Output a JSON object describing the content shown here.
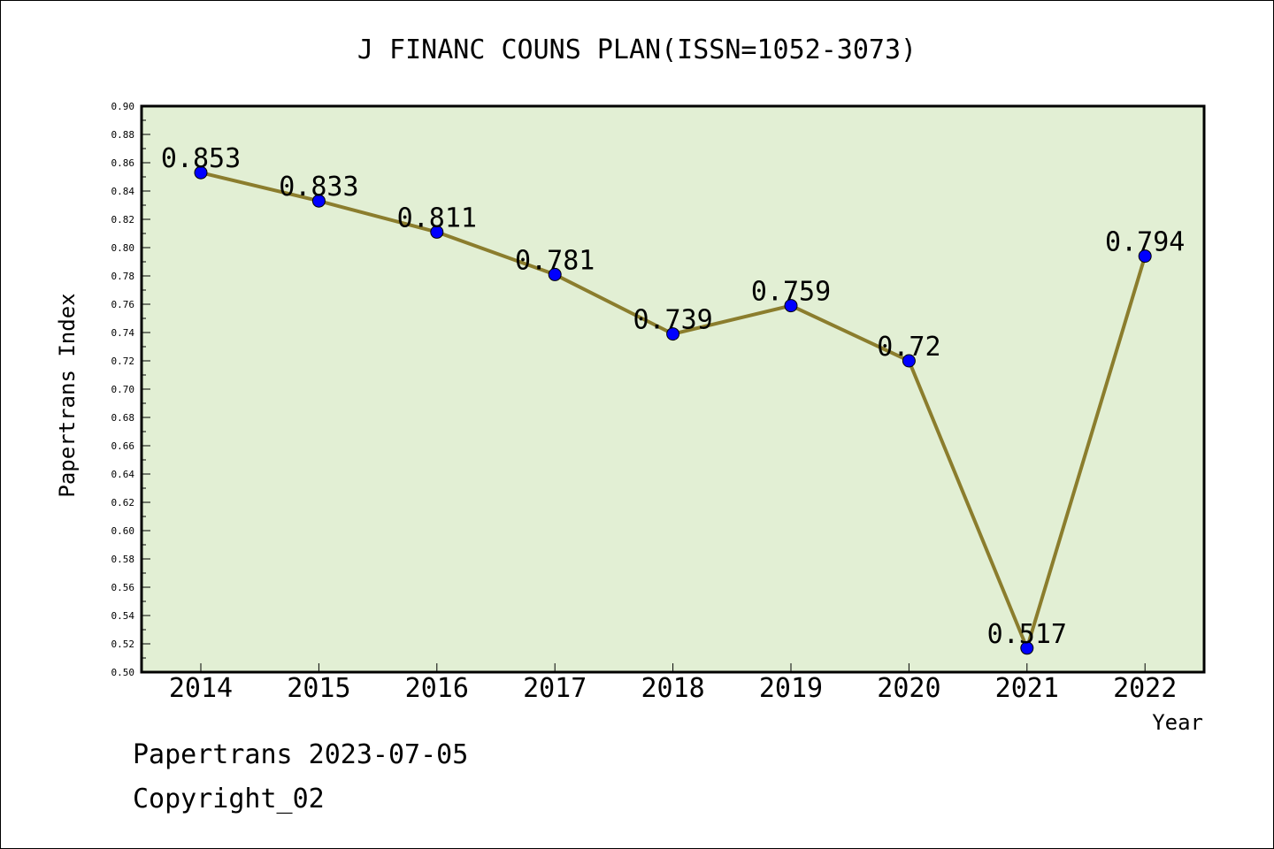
{
  "chart_data": {
    "type": "line",
    "title": "J FINANC COUNS PLAN(ISSN=1052-3073)",
    "xlabel": "Year",
    "ylabel": "Papertrans Index",
    "categories": [
      "2014",
      "2015",
      "2016",
      "2017",
      "2018",
      "2019",
      "2020",
      "2021",
      "2022"
    ],
    "values": [
      0.853,
      0.833,
      0.811,
      0.781,
      0.739,
      0.759,
      0.72,
      0.517,
      0.794
    ],
    "data_labels": [
      "0.853",
      "0.833",
      "0.811",
      "0.781",
      "0.739",
      "0.759",
      "0.72",
      "0.517",
      "0.794"
    ],
    "ylim": [
      0.5,
      0.9
    ],
    "yticks": [
      "0.50",
      "0.52",
      "0.54",
      "0.56",
      "0.58",
      "0.60",
      "0.62",
      "0.64",
      "0.66",
      "0.68",
      "0.70",
      "0.72",
      "0.74",
      "0.76",
      "0.78",
      "0.80",
      "0.82",
      "0.84",
      "0.86",
      "0.88",
      "0.90"
    ],
    "grid": false,
    "colors": {
      "plot_background": "#e2efd4",
      "line": "#8b7d2d",
      "marker": "#0000ff"
    }
  },
  "footer": {
    "date_line": "Papertrans 2023-07-05",
    "copyright_line": "Copyright_02"
  }
}
